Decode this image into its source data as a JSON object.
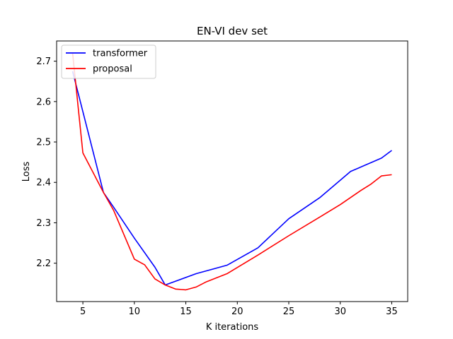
{
  "chart_data": {
    "type": "line",
    "title": "EN-VI dev set",
    "xlabel": "K iterations",
    "ylabel": "Loss",
    "xlim": [
      2.45,
      36.55
    ],
    "ylim": [
      2.105,
      2.75
    ],
    "xticks": [
      5,
      10,
      15,
      20,
      25,
      30,
      35
    ],
    "yticks": [
      2.2,
      2.3,
      2.4,
      2.5,
      2.6,
      2.7
    ],
    "xtick_labels": [
      "5",
      "10",
      "15",
      "20",
      "25",
      "30",
      "35"
    ],
    "ytick_labels": [
      "2.2",
      "2.3",
      "2.4",
      "2.5",
      "2.6",
      "2.7"
    ],
    "grid": false,
    "legend_position": "top-left",
    "series": [
      {
        "name": "transformer",
        "color": "#0000ff",
        "x": [
          4,
          7,
          8,
          10,
          12,
          13,
          16,
          19,
          22,
          25,
          28,
          31,
          34,
          35
        ],
        "y": [
          2.675,
          2.375,
          2.338,
          2.262,
          2.19,
          2.146,
          2.174,
          2.195,
          2.238,
          2.31,
          2.362,
          2.427,
          2.46,
          2.479
        ]
      },
      {
        "name": "proposal",
        "color": "#ff0000",
        "x": [
          4,
          5,
          7,
          8,
          10,
          11,
          12,
          13,
          14,
          15,
          16,
          17,
          19,
          22,
          25,
          28,
          30,
          32,
          33,
          34,
          35
        ],
        "y": [
          2.72,
          2.473,
          2.375,
          2.33,
          2.21,
          2.196,
          2.161,
          2.146,
          2.136,
          2.134,
          2.141,
          2.154,
          2.174,
          2.22,
          2.268,
          2.314,
          2.345,
          2.38,
          2.396,
          2.416,
          2.419
        ]
      }
    ]
  }
}
